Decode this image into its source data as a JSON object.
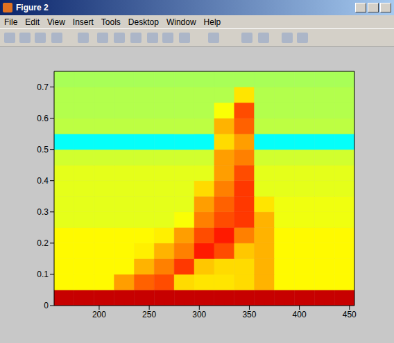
{
  "window": {
    "title": "Figure 2",
    "menu": [
      "File",
      "Edit",
      "View",
      "Insert",
      "Tools",
      "Desktop",
      "Window",
      "Help"
    ]
  },
  "chart_data": {
    "type": "heatmap",
    "x_bins": [
      155,
      175,
      195,
      215,
      235,
      255,
      275,
      295,
      315,
      335,
      355,
      375,
      395,
      415,
      435,
      455
    ],
    "y_bins": [
      0,
      0.05,
      0.1,
      0.15,
      0.2,
      0.25,
      0.3,
      0.35,
      0.4,
      0.45,
      0.5,
      0.55,
      0.6,
      0.65,
      0.7,
      0.75
    ],
    "cells": [
      [
        0.93,
        0.93,
        0.93,
        0.93,
        0.93,
        0.93,
        0.93,
        0.93,
        0.93,
        0.93,
        0.93,
        0.93,
        0.93,
        0.93,
        0.93
      ],
      [
        0.63,
        0.63,
        0.63,
        0.72,
        0.78,
        0.8,
        0.66,
        0.65,
        0.65,
        0.66,
        0.7,
        0.63,
        0.63,
        0.63,
        0.63
      ],
      [
        0.63,
        0.63,
        0.63,
        0.63,
        0.7,
        0.75,
        0.82,
        0.68,
        0.66,
        0.66,
        0.7,
        0.63,
        0.63,
        0.63,
        0.63
      ],
      [
        0.63,
        0.63,
        0.63,
        0.63,
        0.64,
        0.7,
        0.75,
        0.85,
        0.8,
        0.68,
        0.7,
        0.63,
        0.63,
        0.63,
        0.63
      ],
      [
        0.63,
        0.63,
        0.63,
        0.63,
        0.63,
        0.64,
        0.72,
        0.8,
        0.85,
        0.75,
        0.7,
        0.63,
        0.63,
        0.63,
        0.63
      ],
      [
        0.6,
        0.6,
        0.6,
        0.6,
        0.6,
        0.6,
        0.62,
        0.75,
        0.8,
        0.82,
        0.7,
        0.61,
        0.61,
        0.61,
        0.61
      ],
      [
        0.6,
        0.6,
        0.6,
        0.6,
        0.6,
        0.6,
        0.6,
        0.72,
        0.78,
        0.82,
        0.65,
        0.61,
        0.61,
        0.61,
        0.61
      ],
      [
        0.6,
        0.6,
        0.6,
        0.6,
        0.6,
        0.6,
        0.6,
        0.66,
        0.75,
        0.82,
        0.6,
        0.6,
        0.6,
        0.6,
        0.6
      ],
      [
        0.6,
        0.6,
        0.6,
        0.6,
        0.6,
        0.6,
        0.6,
        0.6,
        0.72,
        0.8,
        0.6,
        0.6,
        0.6,
        0.6,
        0.6
      ],
      [
        0.58,
        0.58,
        0.58,
        0.58,
        0.58,
        0.58,
        0.58,
        0.58,
        0.72,
        0.75,
        0.58,
        0.58,
        0.58,
        0.58,
        0.58
      ],
      [
        0.38,
        0.38,
        0.38,
        0.38,
        0.38,
        0.38,
        0.38,
        0.38,
        0.66,
        0.72,
        0.38,
        0.38,
        0.38,
        0.38,
        0.38
      ],
      [
        0.56,
        0.56,
        0.56,
        0.56,
        0.56,
        0.56,
        0.56,
        0.56,
        0.7,
        0.78,
        0.56,
        0.56,
        0.56,
        0.56,
        0.56
      ],
      [
        0.55,
        0.55,
        0.55,
        0.55,
        0.55,
        0.55,
        0.55,
        0.55,
        0.62,
        0.8,
        0.55,
        0.55,
        0.55,
        0.55,
        0.55
      ],
      [
        0.55,
        0.55,
        0.55,
        0.55,
        0.55,
        0.55,
        0.55,
        0.55,
        0.55,
        0.65,
        0.55,
        0.55,
        0.55,
        0.55,
        0.55
      ],
      [
        0.54,
        0.54,
        0.54,
        0.54,
        0.54,
        0.54,
        0.54,
        0.54,
        0.54,
        0.54,
        0.54,
        0.54,
        0.54,
        0.54,
        0.54
      ]
    ],
    "zlim": [
      0,
      1
    ],
    "xlim": [
      155,
      455
    ],
    "ylim": [
      0,
      0.75
    ],
    "xticks": [
      200,
      250,
      300,
      350,
      400,
      450
    ],
    "yticks": [
      0,
      0.1,
      0.2,
      0.3,
      0.4,
      0.5,
      0.6,
      0.7
    ],
    "grid": false
  }
}
